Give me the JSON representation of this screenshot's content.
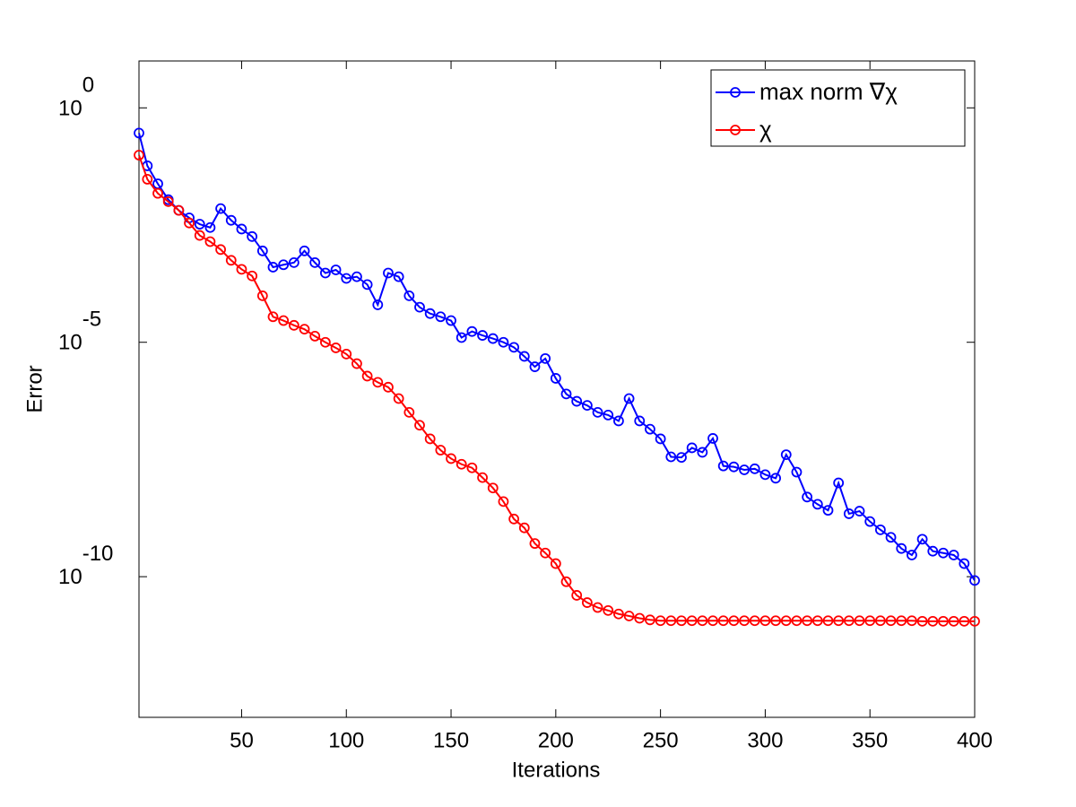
{
  "chart_data": {
    "type": "line",
    "xlabel": "Iterations",
    "ylabel": "Error",
    "xlim": [
      1,
      400
    ],
    "xticks": [
      50,
      100,
      150,
      200,
      250,
      300,
      350,
      400
    ],
    "ylim": [
      1e-13,
      10
    ],
    "ylog": true,
    "yticks": [
      {
        "value": 1,
        "label": [
          "10",
          "0"
        ]
      },
      {
        "value": 1e-05,
        "label": [
          "10",
          "-5"
        ]
      },
      {
        "value": 1e-10,
        "label": [
          "10",
          "-10"
        ]
      }
    ],
    "legend": "top-right",
    "marker": "circle",
    "x": [
      1,
      5,
      10,
      15,
      20,
      25,
      30,
      35,
      40,
      45,
      50,
      55,
      60,
      65,
      70,
      75,
      80,
      85,
      90,
      95,
      100,
      105,
      110,
      115,
      120,
      125,
      130,
      135,
      140,
      145,
      150,
      155,
      160,
      165,
      170,
      175,
      180,
      185,
      190,
      195,
      200,
      205,
      210,
      215,
      220,
      225,
      230,
      235,
      240,
      245,
      250,
      255,
      260,
      265,
      270,
      275,
      280,
      285,
      290,
      295,
      300,
      305,
      310,
      315,
      320,
      325,
      330,
      335,
      340,
      345,
      350,
      355,
      360,
      365,
      370,
      375,
      380,
      385,
      390,
      395,
      400
    ],
    "series": [
      {
        "name": "max norm ∇χ",
        "color": "#0000ff",
        "values": [
          0.29,
          0.058,
          0.024,
          0.011,
          0.0065,
          0.0045,
          0.0033,
          0.0028,
          0.0071,
          0.004,
          0.0026,
          0.0018,
          0.00089,
          0.0004,
          0.00045,
          0.0005,
          0.00089,
          0.0005,
          0.0003,
          0.00035,
          0.00023,
          0.00025,
          0.00017,
          6.3e-05,
          0.0003,
          0.00025,
          9.8e-05,
          5.6e-05,
          4.1e-05,
          3.5e-05,
          2.9e-05,
          1.26e-05,
          1.7e-05,
          1.4e-05,
          1.2e-05,
          1e-05,
          7.8e-06,
          5e-06,
          3e-06,
          4.5e-06,
          1.7e-06,
          7.9e-07,
          5.5e-07,
          4.5e-07,
          3.2e-07,
          2.8e-07,
          2.1e-07,
          6.3e-07,
          2.1e-07,
          1.4e-07,
          8.7e-08,
          3.6e-08,
          3.5e-08,
          5.6e-08,
          4.5e-08,
          8.9e-08,
          2.3e-08,
          2.2e-08,
          1.9e-08,
          2e-08,
          1.5e-08,
          1.26e-08,
          4e-08,
          1.7e-08,
          5e-09,
          3.5e-09,
          2.6e-09,
          1e-08,
          2.2e-09,
          2.5e-09,
          1.5e-09,
          1e-09,
          6.9e-10,
          4e-10,
          2.9e-10,
          6.3e-10,
          3.5e-10,
          3.2e-10,
          2.9e-10,
          1.9e-10,
          8.3e-11
        ]
      },
      {
        "name": "χ",
        "color": "#ff0000",
        "values": [
          0.098,
          0.03,
          0.015,
          0.01,
          0.0065,
          0.0035,
          0.0019,
          0.0014,
          0.00095,
          0.00056,
          0.00036,
          0.00026,
          9.8e-05,
          3.5e-05,
          2.9e-05,
          2.3e-05,
          1.9e-05,
          1.35e-05,
          1e-05,
          7.6e-06,
          5.6e-06,
          3.5e-06,
          1.9e-06,
          1.4e-06,
          1.1e-06,
          6.3e-07,
          3.2e-07,
          1.7e-07,
          8.7e-08,
          5e-08,
          3.3e-08,
          2.5e-08,
          2.1e-08,
          1.3e-08,
          7.8e-09,
          4e-09,
          1.7e-09,
          1.1e-09,
          5.1e-10,
          3.2e-10,
          1.9e-10,
          7.8e-11,
          4e-11,
          2.8e-11,
          2.2e-11,
          1.9e-11,
          1.6e-11,
          1.45e-11,
          1.3e-11,
          1.2e-11,
          1.15e-11,
          1.15e-11,
          1.15e-11,
          1.15e-11,
          1.15e-11,
          1.15e-11,
          1.15e-11,
          1.15e-11,
          1.15e-11,
          1.15e-11,
          1.15e-11,
          1.15e-11,
          1.15e-11,
          1.15e-11,
          1.15e-11,
          1.15e-11,
          1.15e-11,
          1.15e-11,
          1.15e-11,
          1.15e-11,
          1.15e-11,
          1.15e-11,
          1.15e-11,
          1.15e-11,
          1.15e-11,
          1.12e-11,
          1.12e-11,
          1.12e-11,
          1.12e-11,
          1.12e-11,
          1.12e-11
        ]
      }
    ]
  }
}
